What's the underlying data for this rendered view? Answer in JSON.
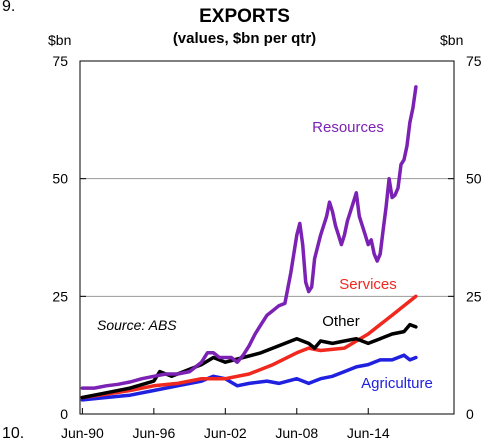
{
  "page": {
    "number_top": "9.",
    "number_bottom": "10."
  },
  "chart_data": {
    "type": "line",
    "title": "EXPORTS",
    "subtitle": "(values, $bn per qtr)",
    "ylabel_left": "$bn",
    "ylabel_right": "$bn",
    "ylim": [
      0,
      75
    ],
    "yticks": [
      0,
      25,
      50,
      75
    ],
    "xlim": [
      1990.3,
      2021.7
    ],
    "xticks": [
      {
        "label": "Jun-90",
        "value": 1990.5
      },
      {
        "label": "Jun-96",
        "value": 1996.5
      },
      {
        "label": "Jun-02",
        "value": 2002.5
      },
      {
        "label": "Jun-08",
        "value": 2008.5
      },
      {
        "label": "Jun-14",
        "value": 2014.5
      }
    ],
    "annotation": "Source: ABS",
    "series": [
      {
        "name": "Resources",
        "color": "#7B22B4",
        "points": [
          [
            1990.5,
            5.5
          ],
          [
            1991.5,
            5.5
          ],
          [
            1992.5,
            6.0
          ],
          [
            1993.5,
            6.3
          ],
          [
            1994.5,
            6.8
          ],
          [
            1995.5,
            7.5
          ],
          [
            1996.5,
            8.0
          ],
          [
            1997.5,
            8.5
          ],
          [
            1998.5,
            8.5
          ],
          [
            1999.5,
            9.0
          ],
          [
            2000.5,
            11.0
          ],
          [
            2001.0,
            13.0
          ],
          [
            2001.5,
            13.0
          ],
          [
            2002.0,
            12.0
          ],
          [
            2002.5,
            12.0
          ],
          [
            2003.0,
            12.0
          ],
          [
            2003.5,
            11.0
          ],
          [
            2004.0,
            12.5
          ],
          [
            2004.5,
            14.5
          ],
          [
            2005.0,
            17.0
          ],
          [
            2005.5,
            19.0
          ],
          [
            2006.0,
            21.0
          ],
          [
            2006.5,
            22.0
          ],
          [
            2007.0,
            23.0
          ],
          [
            2007.5,
            23.5
          ],
          [
            2008.0,
            30.0
          ],
          [
            2008.5,
            38.0
          ],
          [
            2008.75,
            40.5
          ],
          [
            2009.0,
            36.0
          ],
          [
            2009.25,
            28.0
          ],
          [
            2009.5,
            26.0
          ],
          [
            2009.75,
            27.0
          ],
          [
            2010.0,
            33.0
          ],
          [
            2010.5,
            38.0
          ],
          [
            2011.0,
            42.0
          ],
          [
            2011.25,
            45.0
          ],
          [
            2011.5,
            43.0
          ],
          [
            2011.75,
            40.0
          ],
          [
            2012.0,
            38.0
          ],
          [
            2012.25,
            36.0
          ],
          [
            2012.5,
            38.0
          ],
          [
            2012.75,
            41.0
          ],
          [
            2013.0,
            43.0
          ],
          [
            2013.25,
            45.0
          ],
          [
            2013.5,
            47.0
          ],
          [
            2013.75,
            42.0
          ],
          [
            2014.0,
            40.0
          ],
          [
            2014.25,
            38.0
          ],
          [
            2014.5,
            36.0
          ],
          [
            2014.75,
            37.0
          ],
          [
            2015.0,
            34.0
          ],
          [
            2015.25,
            32.5
          ],
          [
            2015.5,
            34.0
          ],
          [
            2015.75,
            39.0
          ],
          [
            2016.0,
            44.0
          ],
          [
            2016.25,
            50.0
          ],
          [
            2016.5,
            46.0
          ],
          [
            2016.75,
            46.5
          ],
          [
            2017.0,
            48.0
          ],
          [
            2017.25,
            53.0
          ],
          [
            2017.5,
            54.0
          ],
          [
            2017.75,
            57.0
          ],
          [
            2018.0,
            62.0
          ],
          [
            2018.25,
            65.0
          ],
          [
            2018.5,
            69.5
          ]
        ]
      },
      {
        "name": "Services",
        "color": "#F0281E",
        "points": [
          [
            1990.5,
            3.5
          ],
          [
            1992.5,
            4.2
          ],
          [
            1994.5,
            5.0
          ],
          [
            1996.5,
            6.0
          ],
          [
            1998.5,
            6.5
          ],
          [
            2000.5,
            7.5
          ],
          [
            2002.5,
            7.5
          ],
          [
            2004.5,
            8.5
          ],
          [
            2006.5,
            10.5
          ],
          [
            2008.5,
            13.0
          ],
          [
            2009.5,
            14.0
          ],
          [
            2010.5,
            13.5
          ],
          [
            2012.5,
            14.0
          ],
          [
            2014.5,
            17.0
          ],
          [
            2016.5,
            21.0
          ],
          [
            2017.5,
            23.0
          ],
          [
            2018.5,
            25.0
          ]
        ]
      },
      {
        "name": "Other",
        "color": "#000000",
        "points": [
          [
            1990.5,
            3.5
          ],
          [
            1992.5,
            4.5
          ],
          [
            1994.5,
            5.5
          ],
          [
            1996.5,
            7.0
          ],
          [
            1997.0,
            9.0
          ],
          [
            1998.0,
            8.0
          ],
          [
            1999.5,
            9.5
          ],
          [
            2000.5,
            10.5
          ],
          [
            2001.5,
            12.0
          ],
          [
            2002.5,
            11.0
          ],
          [
            2004.0,
            12.0
          ],
          [
            2005.5,
            13.0
          ],
          [
            2007.0,
            14.5
          ],
          [
            2008.5,
            16.0
          ],
          [
            2009.5,
            15.0
          ],
          [
            2010.0,
            14.0
          ],
          [
            2010.5,
            15.5
          ],
          [
            2011.5,
            15.0
          ],
          [
            2012.5,
            15.5
          ],
          [
            2013.5,
            16.0
          ],
          [
            2014.5,
            15.0
          ],
          [
            2015.5,
            16.0
          ],
          [
            2016.5,
            17.0
          ],
          [
            2017.5,
            17.5
          ],
          [
            2018.0,
            19.0
          ],
          [
            2018.5,
            18.5
          ]
        ]
      },
      {
        "name": "Agriculture",
        "color": "#2020E0",
        "points": [
          [
            1990.5,
            3.0
          ],
          [
            1992.5,
            3.5
          ],
          [
            1994.5,
            4.0
          ],
          [
            1996.5,
            5.0
          ],
          [
            1998.5,
            6.0
          ],
          [
            2000.5,
            7.0
          ],
          [
            2001.5,
            8.0
          ],
          [
            2002.5,
            7.5
          ],
          [
            2003.5,
            6.0
          ],
          [
            2004.5,
            6.5
          ],
          [
            2006.0,
            7.0
          ],
          [
            2007.0,
            6.5
          ],
          [
            2008.5,
            7.5
          ],
          [
            2009.5,
            6.5
          ],
          [
            2010.5,
            7.5
          ],
          [
            2011.5,
            8.0
          ],
          [
            2012.5,
            9.0
          ],
          [
            2013.5,
            10.0
          ],
          [
            2014.5,
            10.5
          ],
          [
            2015.5,
            11.5
          ],
          [
            2016.5,
            11.5
          ],
          [
            2017.5,
            12.5
          ],
          [
            2018.0,
            11.5
          ],
          [
            2018.5,
            12.0
          ]
        ]
      }
    ]
  }
}
